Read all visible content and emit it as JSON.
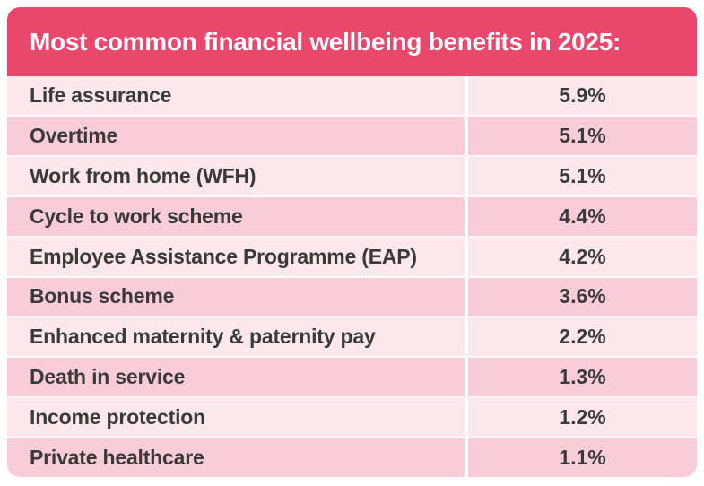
{
  "header": {
    "title": "Most common financial wellbeing benefits in 2025:"
  },
  "table": {
    "rows": [
      {
        "label": "Life assurance",
        "value": "5.9%"
      },
      {
        "label": "Overtime",
        "value": "5.1%"
      },
      {
        "label": "Work from home (WFH)",
        "value": "5.1%"
      },
      {
        "label": "Cycle to work scheme",
        "value": "4.4%"
      },
      {
        "label": "Employee Assistance Programme (EAP)",
        "value": "4.2%"
      },
      {
        "label": "Bonus scheme",
        "value": "3.6%"
      },
      {
        "label": "Enhanced maternity & paternity pay",
        "value": "2.2%"
      },
      {
        "label": "Death in service",
        "value": "1.3%"
      },
      {
        "label": "Income protection",
        "value": "1.2%"
      },
      {
        "label": "Private healthcare",
        "value": "1.1%"
      }
    ]
  },
  "colors": {
    "header_bg": "#E9476B",
    "row_light": "#FCE8EC",
    "row_dark": "#F9CDD8",
    "text": "#3A3A3A",
    "header_text": "#FFFFFF",
    "divider": "#FFFFFF"
  },
  "chart_data": {
    "type": "table",
    "title": "Most common financial wellbeing benefits in 2025:",
    "categories": [
      "Life assurance",
      "Overtime",
      "Work from home (WFH)",
      "Cycle to work scheme",
      "Employee Assistance Programme (EAP)",
      "Bonus scheme",
      "Enhanced maternity & paternity pay",
      "Death in service",
      "Income protection",
      "Private healthcare"
    ],
    "values": [
      5.9,
      5.1,
      5.1,
      4.4,
      4.2,
      3.6,
      2.2,
      1.3,
      1.2,
      1.1
    ],
    "unit": "%",
    "legend_position": "none",
    "grid": false
  }
}
